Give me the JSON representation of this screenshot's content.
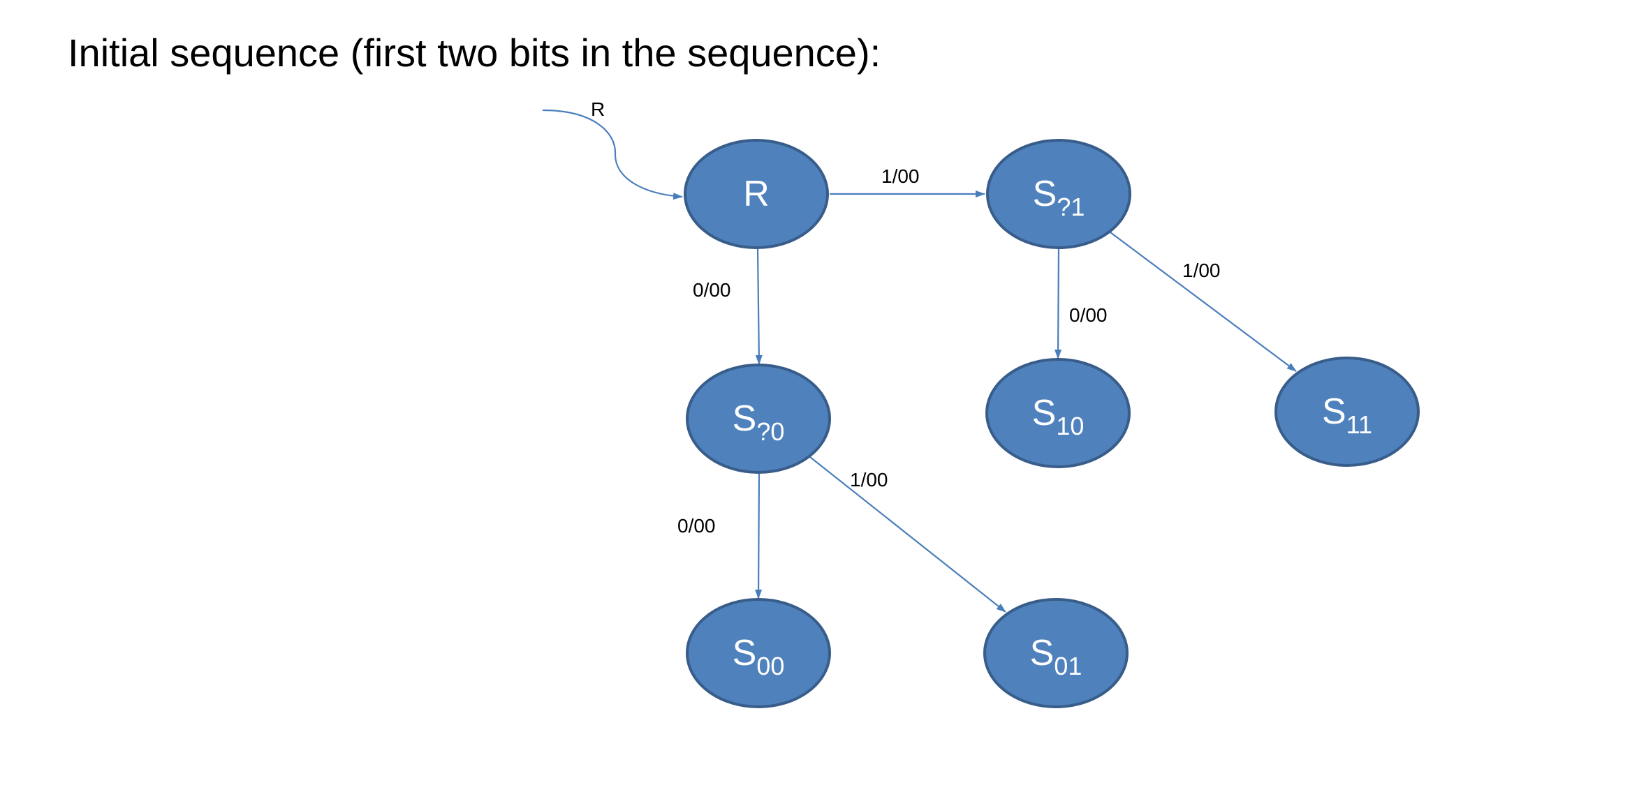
{
  "title": "Initial sequence (first two bits in the sequence):",
  "colors": {
    "node_fill": "#4F81BD",
    "node_stroke": "#385D8A",
    "node_text": "#FFFFFF",
    "edge": "#4A7EBB",
    "label_text": "#000000"
  },
  "reset": {
    "label": "R",
    "target": "R"
  },
  "states": [
    {
      "id": "R",
      "name": "R",
      "sub": ""
    },
    {
      "id": "S?1",
      "name": "S",
      "sub": "?1"
    },
    {
      "id": "S?0",
      "name": "S",
      "sub": "?0"
    },
    {
      "id": "S10",
      "name": "S",
      "sub": "10"
    },
    {
      "id": "S11",
      "name": "S",
      "sub": "11"
    },
    {
      "id": "S00",
      "name": "S",
      "sub": "00"
    },
    {
      "id": "S01",
      "name": "S",
      "sub": "01"
    }
  ],
  "transitions": [
    {
      "from": "R",
      "to": "S?1",
      "label": "1/00"
    },
    {
      "from": "R",
      "to": "S?0",
      "label": "0/00"
    },
    {
      "from": "S?1",
      "to": "S10",
      "label": "0/00"
    },
    {
      "from": "S?1",
      "to": "S11",
      "label": "1/00"
    },
    {
      "from": "S?0",
      "to": "S00",
      "label": "0/00"
    },
    {
      "from": "S?0",
      "to": "S01",
      "label": "1/00"
    }
  ]
}
